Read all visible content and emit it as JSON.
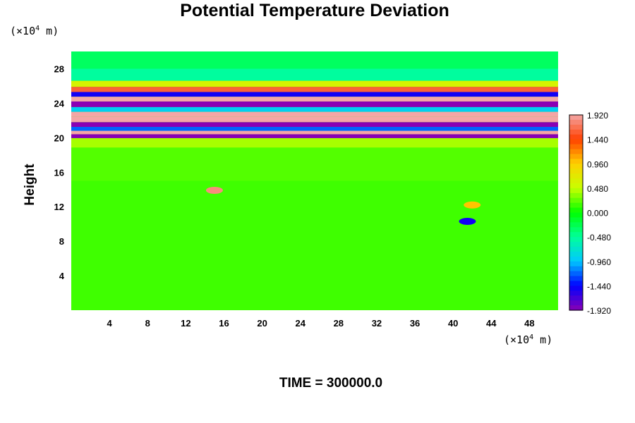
{
  "chart_data": {
    "type": "heatmap",
    "title": "Potential Temperature Deviation",
    "ylabel": "Height",
    "xlabel": "",
    "x_unit_prefix": "(×10",
    "x_unit_exp": "4",
    "x_unit_suffix": " m)",
    "y_unit_prefix": "(×10",
    "y_unit_exp": "4",
    "y_unit_suffix": " m)",
    "xlim": [
      0,
      51
    ],
    "ylim": [
      0,
      30
    ],
    "x_ticks": [
      4,
      8,
      12,
      16,
      20,
      24,
      28,
      32,
      36,
      40,
      44,
      48
    ],
    "y_ticks": [
      4,
      8,
      12,
      16,
      20,
      24,
      28
    ],
    "colorbar": {
      "range": [
        -1.92,
        1.92
      ],
      "tick_labels": [
        "1.920",
        "1.440",
        "0.960",
        "0.480",
        "0.000",
        "-0.480",
        "-0.960",
        "-1.440",
        "-1.920"
      ],
      "tick_values": [
        1.92,
        1.44,
        0.96,
        0.48,
        0.0,
        -0.48,
        -0.96,
        -1.44,
        -1.92
      ],
      "colors_low_to_high": [
        "#8a00b4",
        "#0000ff",
        "#00c8ff",
        "#00ff9a",
        "#00ff00",
        "#c8ff00",
        "#ffd000",
        "#ff4000",
        "#f4a6a6"
      ]
    },
    "bands": [
      {
        "y": 29.0,
        "value": -0.3
      },
      {
        "y": 27.0,
        "value": -0.5
      },
      {
        "y": 26.2,
        "value": 0.6
      },
      {
        "y": 25.6,
        "value": 1.6
      },
      {
        "y": 25.0,
        "value": -1.5
      },
      {
        "y": 24.5,
        "value": 1.92
      },
      {
        "y": 23.9,
        "value": -1.92
      },
      {
        "y": 23.2,
        "value": -0.9
      },
      {
        "y": 22.8,
        "value": 1.92
      },
      {
        "y": 22.1,
        "value": 1.92
      },
      {
        "y": 21.5,
        "value": -1.92
      },
      {
        "y": 21.0,
        "value": -1.2
      },
      {
        "y": 20.6,
        "value": 1.92
      },
      {
        "y": 20.2,
        "value": -1.92
      },
      {
        "y": 19.7,
        "value": 0.4
      },
      {
        "y": 18.0,
        "value": 0.2
      },
      {
        "y": 12.0,
        "value": 0.15
      }
    ],
    "features": [
      {
        "x": 15.0,
        "y": 13.9,
        "value": 1.8
      },
      {
        "x": 42.0,
        "y": 12.2,
        "value": 1.0
      },
      {
        "x": 41.5,
        "y": 10.3,
        "value": -1.5
      }
    ]
  },
  "footer": {
    "time_label": "TIME = 300000.0"
  }
}
